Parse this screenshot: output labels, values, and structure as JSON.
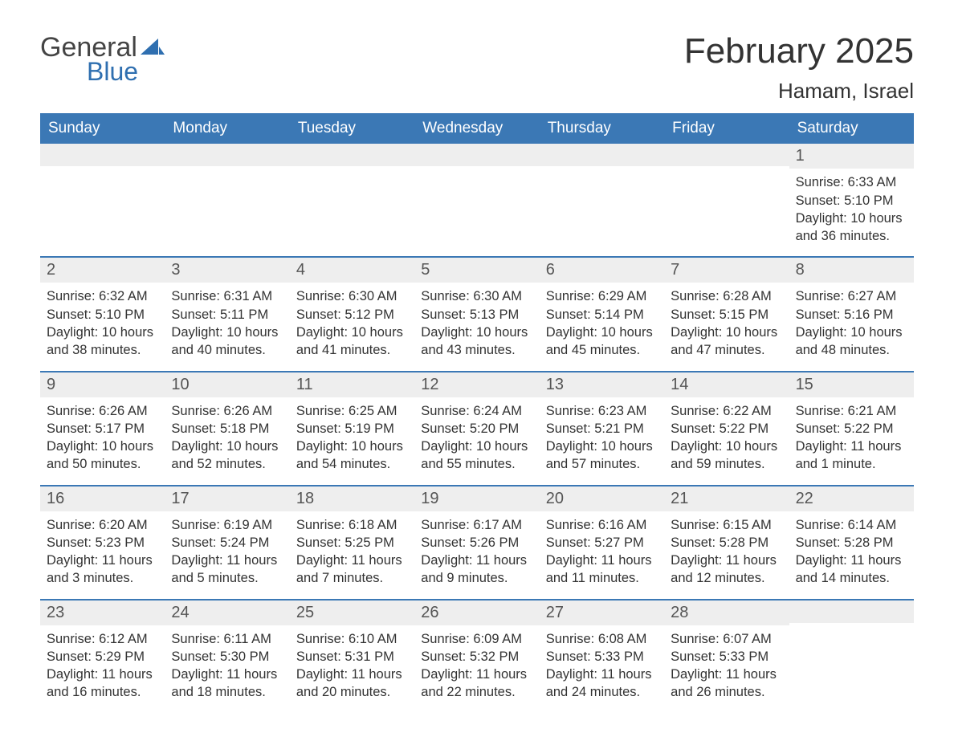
{
  "brand": {
    "word1": "General",
    "word2": "Blue",
    "word1_color": "#444444",
    "word2_color": "#2f6fb0",
    "sail_color": "#2f6fb0"
  },
  "title": "February 2025",
  "location": "Hamam, Israel",
  "colors": {
    "header_bg": "#3b78b5",
    "header_text": "#ffffff",
    "daynum_bg": "#eeeeee",
    "week_border": "#3b78b5",
    "body_text": "#333333"
  },
  "weekdays": [
    "Sunday",
    "Monday",
    "Tuesday",
    "Wednesday",
    "Thursday",
    "Friday",
    "Saturday"
  ],
  "weeks": [
    [
      {
        "blank": true
      },
      {
        "blank": true
      },
      {
        "blank": true
      },
      {
        "blank": true
      },
      {
        "blank": true
      },
      {
        "blank": true
      },
      {
        "day": 1,
        "sunrise": "6:33 AM",
        "sunset": "5:10 PM",
        "daylight": "10 hours and 36 minutes."
      }
    ],
    [
      {
        "day": 2,
        "sunrise": "6:32 AM",
        "sunset": "5:10 PM",
        "daylight": "10 hours and 38 minutes."
      },
      {
        "day": 3,
        "sunrise": "6:31 AM",
        "sunset": "5:11 PM",
        "daylight": "10 hours and 40 minutes."
      },
      {
        "day": 4,
        "sunrise": "6:30 AM",
        "sunset": "5:12 PM",
        "daylight": "10 hours and 41 minutes."
      },
      {
        "day": 5,
        "sunrise": "6:30 AM",
        "sunset": "5:13 PM",
        "daylight": "10 hours and 43 minutes."
      },
      {
        "day": 6,
        "sunrise": "6:29 AM",
        "sunset": "5:14 PM",
        "daylight": "10 hours and 45 minutes."
      },
      {
        "day": 7,
        "sunrise": "6:28 AM",
        "sunset": "5:15 PM",
        "daylight": "10 hours and 47 minutes."
      },
      {
        "day": 8,
        "sunrise": "6:27 AM",
        "sunset": "5:16 PM",
        "daylight": "10 hours and 48 minutes."
      }
    ],
    [
      {
        "day": 9,
        "sunrise": "6:26 AM",
        "sunset": "5:17 PM",
        "daylight": "10 hours and 50 minutes."
      },
      {
        "day": 10,
        "sunrise": "6:26 AM",
        "sunset": "5:18 PM",
        "daylight": "10 hours and 52 minutes."
      },
      {
        "day": 11,
        "sunrise": "6:25 AM",
        "sunset": "5:19 PM",
        "daylight": "10 hours and 54 minutes."
      },
      {
        "day": 12,
        "sunrise": "6:24 AM",
        "sunset": "5:20 PM",
        "daylight": "10 hours and 55 minutes."
      },
      {
        "day": 13,
        "sunrise": "6:23 AM",
        "sunset": "5:21 PM",
        "daylight": "10 hours and 57 minutes."
      },
      {
        "day": 14,
        "sunrise": "6:22 AM",
        "sunset": "5:22 PM",
        "daylight": "10 hours and 59 minutes."
      },
      {
        "day": 15,
        "sunrise": "6:21 AM",
        "sunset": "5:22 PM",
        "daylight": "11 hours and 1 minute."
      }
    ],
    [
      {
        "day": 16,
        "sunrise": "6:20 AM",
        "sunset": "5:23 PM",
        "daylight": "11 hours and 3 minutes."
      },
      {
        "day": 17,
        "sunrise": "6:19 AM",
        "sunset": "5:24 PM",
        "daylight": "11 hours and 5 minutes."
      },
      {
        "day": 18,
        "sunrise": "6:18 AM",
        "sunset": "5:25 PM",
        "daylight": "11 hours and 7 minutes."
      },
      {
        "day": 19,
        "sunrise": "6:17 AM",
        "sunset": "5:26 PM",
        "daylight": "11 hours and 9 minutes."
      },
      {
        "day": 20,
        "sunrise": "6:16 AM",
        "sunset": "5:27 PM",
        "daylight": "11 hours and 11 minutes."
      },
      {
        "day": 21,
        "sunrise": "6:15 AM",
        "sunset": "5:28 PM",
        "daylight": "11 hours and 12 minutes."
      },
      {
        "day": 22,
        "sunrise": "6:14 AM",
        "sunset": "5:28 PM",
        "daylight": "11 hours and 14 minutes."
      }
    ],
    [
      {
        "day": 23,
        "sunrise": "6:12 AM",
        "sunset": "5:29 PM",
        "daylight": "11 hours and 16 minutes."
      },
      {
        "day": 24,
        "sunrise": "6:11 AM",
        "sunset": "5:30 PM",
        "daylight": "11 hours and 18 minutes."
      },
      {
        "day": 25,
        "sunrise": "6:10 AM",
        "sunset": "5:31 PM",
        "daylight": "11 hours and 20 minutes."
      },
      {
        "day": 26,
        "sunrise": "6:09 AM",
        "sunset": "5:32 PM",
        "daylight": "11 hours and 22 minutes."
      },
      {
        "day": 27,
        "sunrise": "6:08 AM",
        "sunset": "5:33 PM",
        "daylight": "11 hours and 24 minutes."
      },
      {
        "day": 28,
        "sunrise": "6:07 AM",
        "sunset": "5:33 PM",
        "daylight": "11 hours and 26 minutes."
      },
      {
        "blank": true
      }
    ]
  ],
  "labels": {
    "sunrise": "Sunrise:",
    "sunset": "Sunset:",
    "daylight": "Daylight:"
  }
}
